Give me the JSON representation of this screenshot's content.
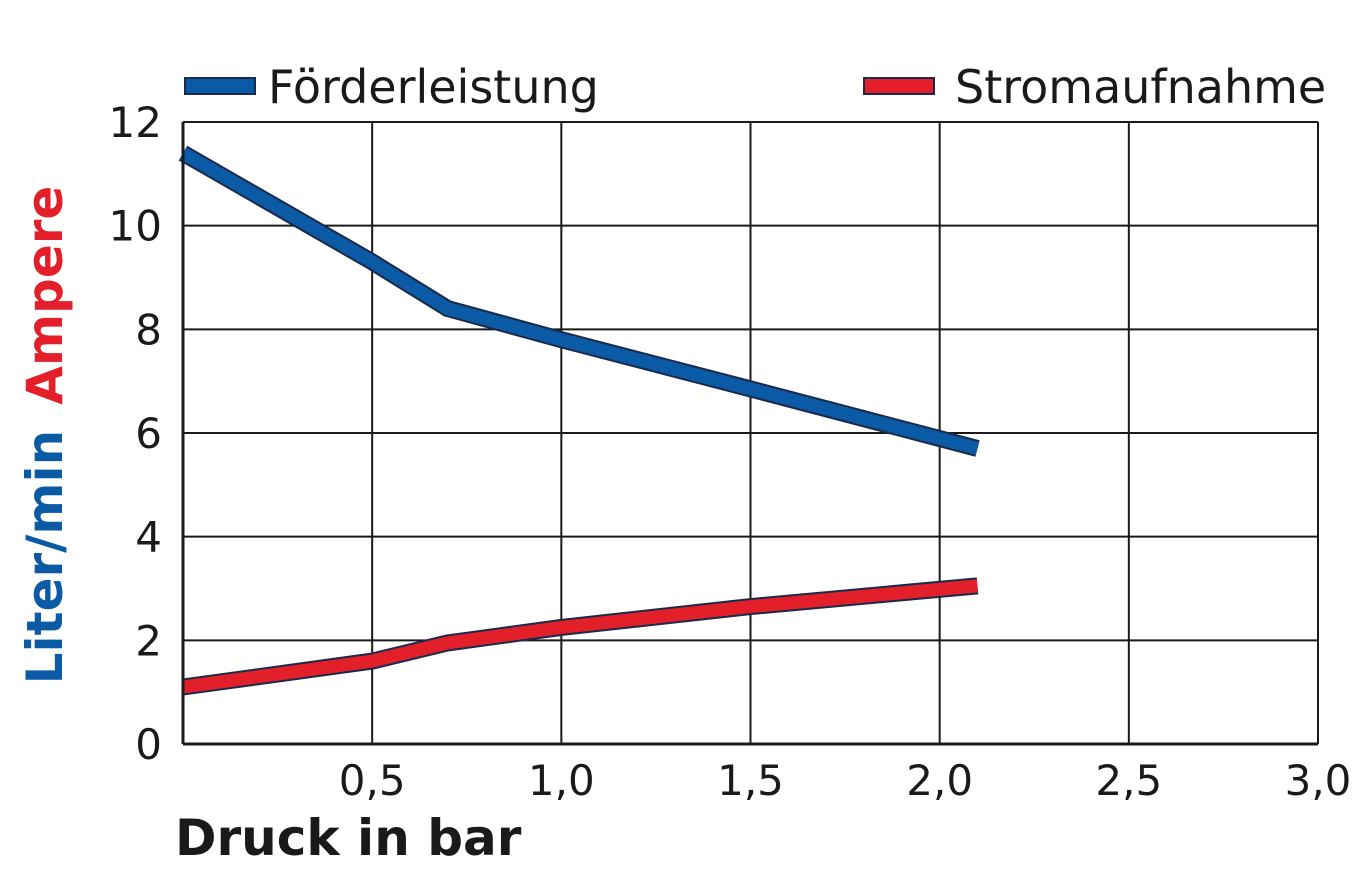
{
  "chart_data": {
    "type": "line",
    "xlabel": "Druck in bar",
    "ylabel_parts": [
      {
        "text": "Liter/min",
        "color": "#0a5aa6"
      },
      {
        "text": "Ampere",
        "color": "#e3202a"
      }
    ],
    "xlim": [
      0,
      3.0
    ],
    "ylim": [
      0,
      12
    ],
    "x_ticks": [
      {
        "value": 0.5,
        "label": "0,5"
      },
      {
        "value": 1.0,
        "label": "1,0"
      },
      {
        "value": 1.5,
        "label": "1,5"
      },
      {
        "value": 2.0,
        "label": "2,0"
      },
      {
        "value": 2.5,
        "label": "2,5"
      },
      {
        "value": 3.0,
        "label": "3,0"
      }
    ],
    "y_ticks": [
      {
        "value": 0,
        "label": "0"
      },
      {
        "value": 2,
        "label": "2"
      },
      {
        "value": 4,
        "label": "4"
      },
      {
        "value": 6,
        "label": "6"
      },
      {
        "value": 8,
        "label": "8"
      },
      {
        "value": 10,
        "label": "10"
      },
      {
        "value": 12,
        "label": "12"
      }
    ],
    "grid": true,
    "legend_position": "top",
    "series": [
      {
        "name": "Förderleistung",
        "color": "#0a5aa6",
        "points": [
          [
            0,
            11.4
          ],
          [
            0.5,
            9.3
          ],
          [
            0.7,
            8.4
          ],
          [
            1.0,
            7.8
          ],
          [
            1.5,
            6.85
          ],
          [
            2.1,
            5.7
          ]
        ]
      },
      {
        "name": "Stromaufnahme",
        "color": "#e3202a",
        "points": [
          [
            0,
            1.1
          ],
          [
            0.5,
            1.6
          ],
          [
            0.7,
            1.95
          ],
          [
            1.0,
            2.25
          ],
          [
            1.5,
            2.65
          ],
          [
            2.1,
            3.05
          ]
        ]
      }
    ]
  }
}
